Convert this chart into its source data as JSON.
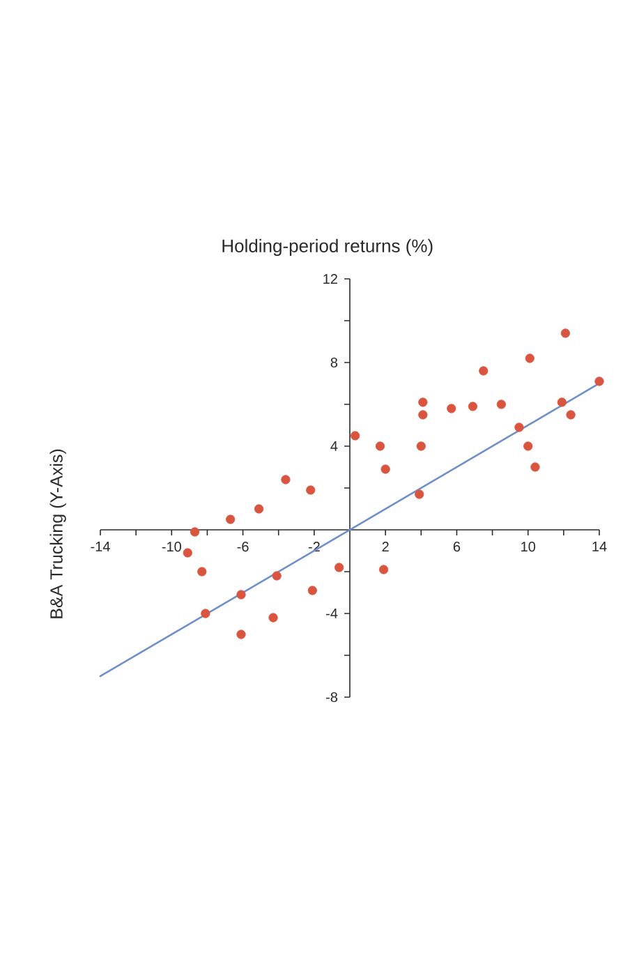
{
  "chart_data": {
    "type": "scatter",
    "title": "Holding-period returns (%)",
    "ylabel": "B&A Trucking (Y-Axis)",
    "xlim": [
      -14,
      14
    ],
    "ylim": [
      -8,
      12
    ],
    "xticks": [
      -14,
      {
        "value": -12,
        "label": null
      },
      -10,
      {
        "value": -8,
        "label": null
      },
      -6,
      {
        "value": -4,
        "label": null
      },
      -2,
      2,
      {
        "value": 4,
        "label": null
      },
      6,
      {
        "value": 8,
        "label": null
      },
      10,
      {
        "value": 12,
        "label": null
      },
      14
    ],
    "yticks": [
      -8,
      {
        "value": -6,
        "label": null
      },
      -4,
      {
        "value": -2,
        "label": null
      },
      {
        "value": 2,
        "label": null
      },
      4,
      {
        "value": 6,
        "label": null
      },
      8,
      {
        "value": 10,
        "label": null
      },
      12
    ],
    "series": [
      {
        "color": "#d9553f",
        "marker": "circle",
        "x": [
          -9.1,
          -8.7,
          -8.3,
          -8.1,
          -6.7,
          -6.1,
          -6.1,
          -5.1,
          -4.3,
          -4.1,
          -3.6,
          -2.2,
          -2.1,
          -0.6,
          0.3,
          1.7,
          1.9,
          2.0,
          3.9,
          4.0,
          4.1,
          4.1,
          5.7,
          6.9,
          7.5,
          8.5,
          9.5,
          10.0,
          10.1,
          10.4,
          11.9,
          12.1,
          12.4,
          14.0
        ],
        "values": [
          -1.1,
          -0.1,
          -2.0,
          -4.0,
          0.5,
          -5.0,
          -3.1,
          1.0,
          -4.2,
          -2.2,
          2.4,
          1.9,
          -2.9,
          -1.8,
          4.5,
          4.0,
          -1.9,
          2.9,
          1.7,
          4.0,
          5.5,
          6.1,
          5.8,
          5.9,
          7.6,
          6.0,
          4.9,
          4.0,
          8.2,
          3.0,
          6.1,
          9.4,
          5.5,
          7.1
        ]
      },
      {
        "type": "line",
        "color": "#6f8fc9",
        "x": [
          -14,
          14
        ],
        "values": [
          -7,
          7
        ]
      }
    ]
  }
}
